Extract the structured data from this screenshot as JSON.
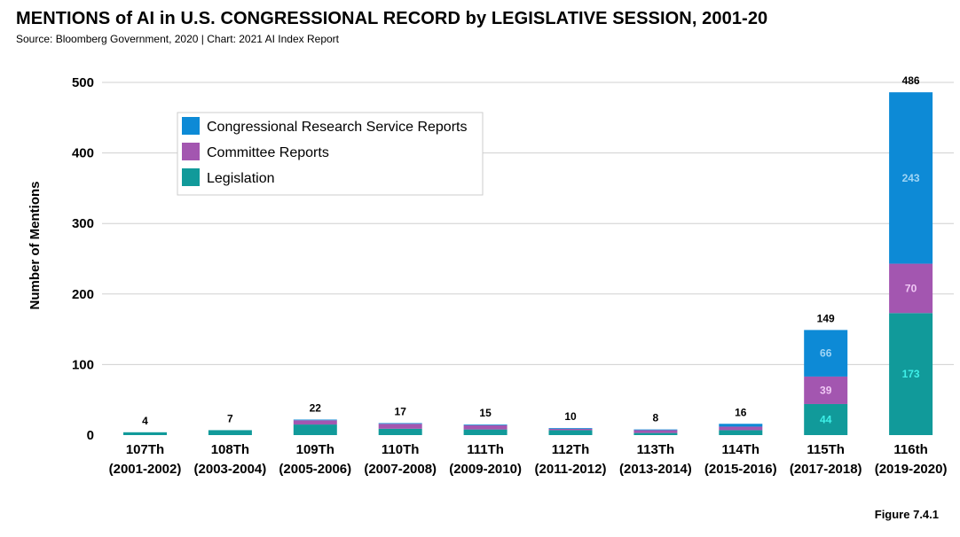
{
  "title": "MENTIONS of AI in U.S. CONGRESSIONAL RECORD by LEGISLATIVE SESSION, 2001-20",
  "source": "Source: Bloomberg Government, 2020 | Chart: 2021 AI Index Report",
  "figure_label": "Figure 7.4.1",
  "colors": {
    "crs": "#0d8ad6",
    "committee": "#a356b0",
    "legislation": "#119a9a",
    "crs_label": "#9fd5f5",
    "committee_label": "#f0c8f5",
    "legislation_label": "#3ef0e8"
  },
  "chart_data": {
    "type": "bar",
    "stacked": true,
    "ylabel": "Number of Mentions",
    "ylim": [
      0,
      500
    ],
    "yticks": [
      0,
      100,
      200,
      300,
      400,
      500
    ],
    "grid": true,
    "legend_position": "top-left",
    "categories": [
      {
        "session": "107Th",
        "years": "(2001-2002)"
      },
      {
        "session": "108Th",
        "years": "(2003-2004)"
      },
      {
        "session": "109Th",
        "years": "(2005-2006)"
      },
      {
        "session": "110Th",
        "years": "(2007-2008)"
      },
      {
        "session": "111Th",
        "years": "(2009-2010)"
      },
      {
        "session": "112Th",
        "years": "(2011-2012)"
      },
      {
        "session": "113Th",
        "years": "(2013-2014)"
      },
      {
        "session": "114Th",
        "years": "(2015-2016)"
      },
      {
        "session": "115Th",
        "years": "(2017-2018)"
      },
      {
        "session": "116th",
        "years": "(2019-2020)"
      }
    ],
    "series": [
      {
        "name": "Legislation",
        "color_key": "legislation",
        "values": [
          4,
          7,
          15,
          9,
          8,
          7,
          3,
          7,
          44,
          173
        ]
      },
      {
        "name": "Committee Reports",
        "color_key": "committee",
        "values": [
          0,
          0,
          6,
          7,
          6,
          2,
          4,
          5,
          39,
          70
        ]
      },
      {
        "name": "Congressional Research Service Reports",
        "color_key": "crs",
        "values": [
          0,
          0,
          1,
          1,
          1,
          1,
          1,
          4,
          66,
          243
        ]
      }
    ],
    "totals": [
      4,
      7,
      22,
      17,
      15,
      10,
      8,
      16,
      149,
      486
    ],
    "segment_labels": [
      {
        "category_index": 8,
        "series": "Legislation",
        "text": "44"
      },
      {
        "category_index": 8,
        "series": "Committee Reports",
        "text": "39"
      },
      {
        "category_index": 8,
        "series": "Congressional Research Service Reports",
        "text": "66"
      },
      {
        "category_index": 9,
        "series": "Legislation",
        "text": "173"
      },
      {
        "category_index": 9,
        "series": "Committee Reports",
        "text": "70"
      },
      {
        "category_index": 9,
        "series": "Congressional Research Service Reports",
        "text": "243"
      }
    ],
    "legend": [
      {
        "label": "Congressional Research Service Reports",
        "color_key": "crs"
      },
      {
        "label": "Committee Reports",
        "color_key": "committee"
      },
      {
        "label": "Legislation",
        "color_key": "legislation"
      }
    ]
  }
}
